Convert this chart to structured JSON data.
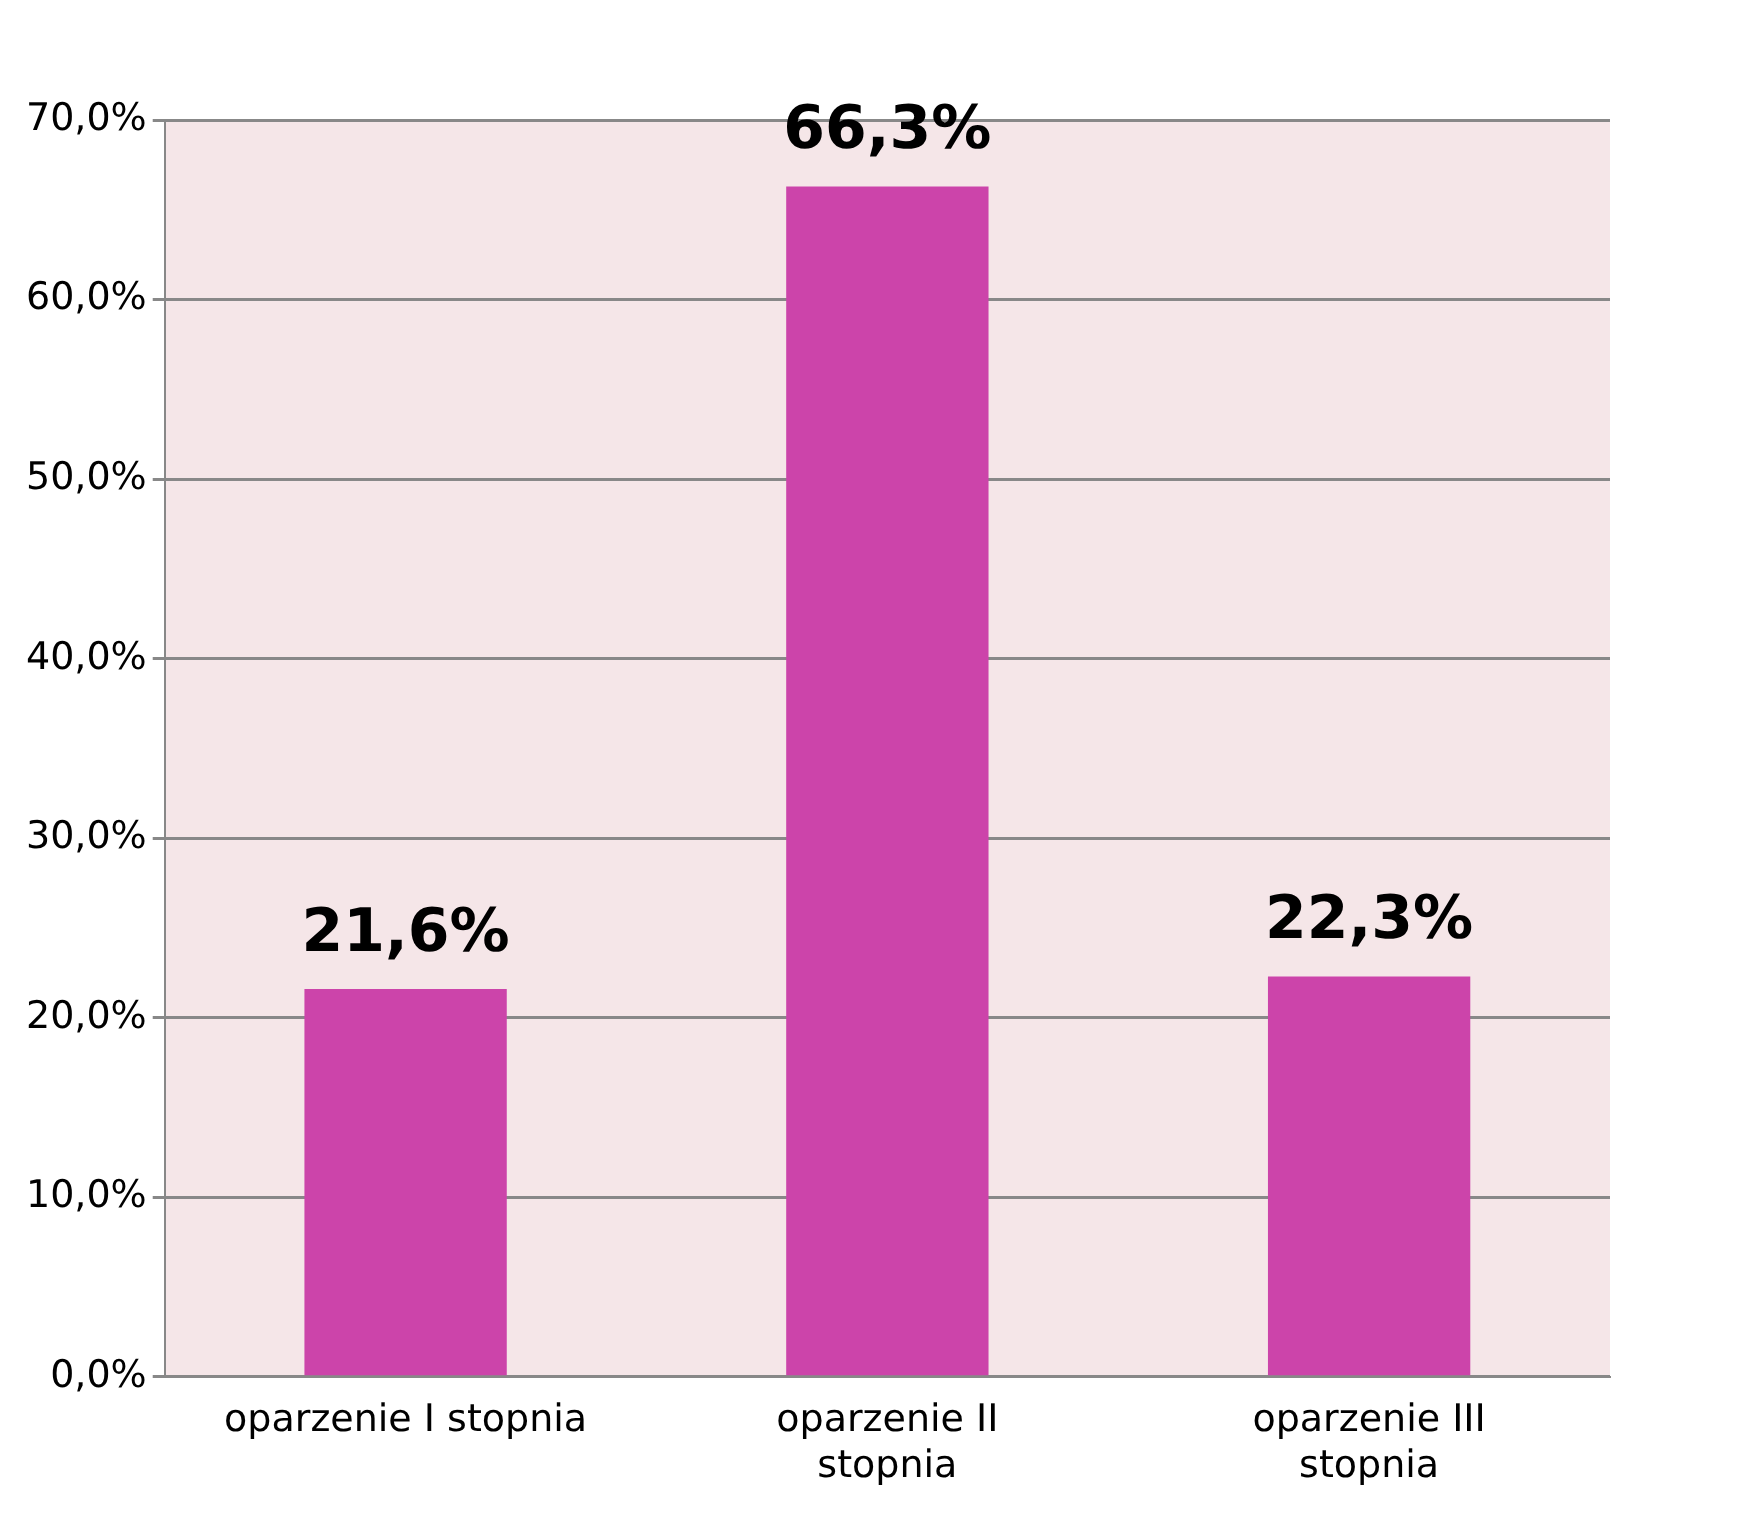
{
  "chart_data": {
    "type": "bar",
    "categories": [
      "oparzenie I stopnia",
      "oparzenie II stopnia",
      "oparzenie III stopnia"
    ],
    "values": [
      21.6,
      66.3,
      22.3
    ],
    "value_labels": [
      "21,6%",
      "66,3%",
      "22,3%"
    ],
    "color": "#cc44aa",
    "ylim": [
      0,
      70
    ],
    "yticks": [
      {
        "value": 0,
        "label": "0,0%"
      },
      {
        "value": 10,
        "label": "10,0%"
      },
      {
        "value": 20,
        "label": "20,0%"
      },
      {
        "value": 30,
        "label": "30,0%"
      },
      {
        "value": 40,
        "label": "40,0%"
      },
      {
        "value": 50,
        "label": "50,0%"
      },
      {
        "value": 60,
        "label": "60,0%"
      },
      {
        "value": 70,
        "label": "70,0%"
      }
    ],
    "grid": "y",
    "legend": false
  }
}
